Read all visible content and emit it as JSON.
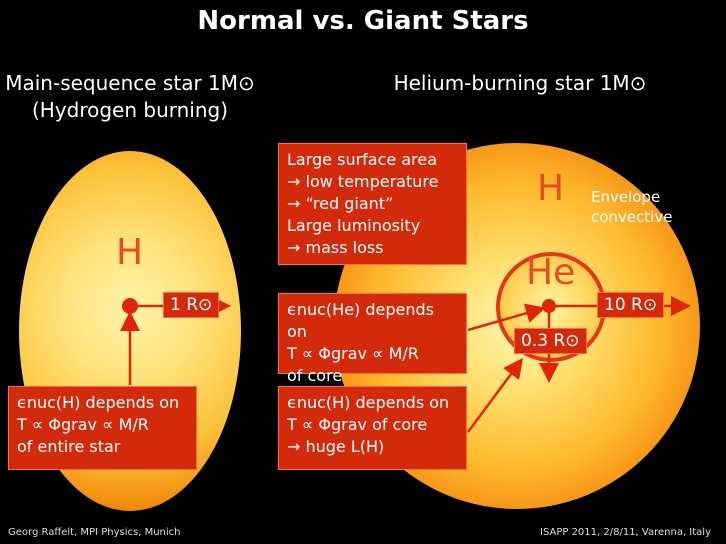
{
  "title": "Normal vs. Giant Stars",
  "left_heading": {
    "line1": "Main-sequence star 1M⊙",
    "line2": "(Hydrogen burning)"
  },
  "right_heading": "Helium-burning star 1M⊙",
  "labels": {
    "h_left": "H",
    "h_right": "H",
    "he": "He",
    "envelope": "Envelope convective",
    "r_left": "1 R⊙",
    "r_right": "10 R⊙",
    "r_core": "0.3 R⊙"
  },
  "box_red_giant": [
    "Large surface area",
    "→ low temperature",
    "→ “red giant”",
    "Large luminosity",
    "→ mass loss"
  ],
  "box_nuc_he": [
    "ϵnuc(He) depends on",
    "T ∝ Φgrav ∝ M/R",
    "of core"
  ],
  "box_nuc_h_left": [
    "ϵnuc(H) depends on",
    "T ∝ Φgrav ∝ M/R",
    "of entire star"
  ],
  "box_nuc_h_right": [
    "ϵnuc(H) depends on",
    "T ∝ Φgrav  of core",
    "→ huge  L(H)"
  ],
  "footer": {
    "left": "Georg Raffelt, MPI Physics, Munich",
    "right": "ISAPP 2011, 2/8/11, Varenna, Italy"
  },
  "colors": {
    "arrow": "#e0260a",
    "box": "#d42a0c",
    "letter": "#e74c23"
  }
}
